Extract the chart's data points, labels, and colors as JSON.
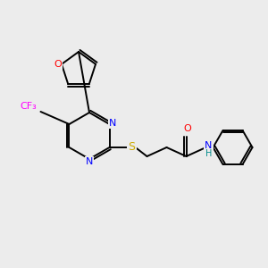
{
  "background_color": "#ececec",
  "bond_color": "#000000",
  "atom_colors": {
    "O": "#ff0000",
    "N": "#0000ff",
    "S": "#ccaa00",
    "F": "#ff00ff",
    "NH": "#008b8b",
    "C": "#000000"
  },
  "figsize": [
    3.0,
    3.0
  ],
  "dpi": 100
}
